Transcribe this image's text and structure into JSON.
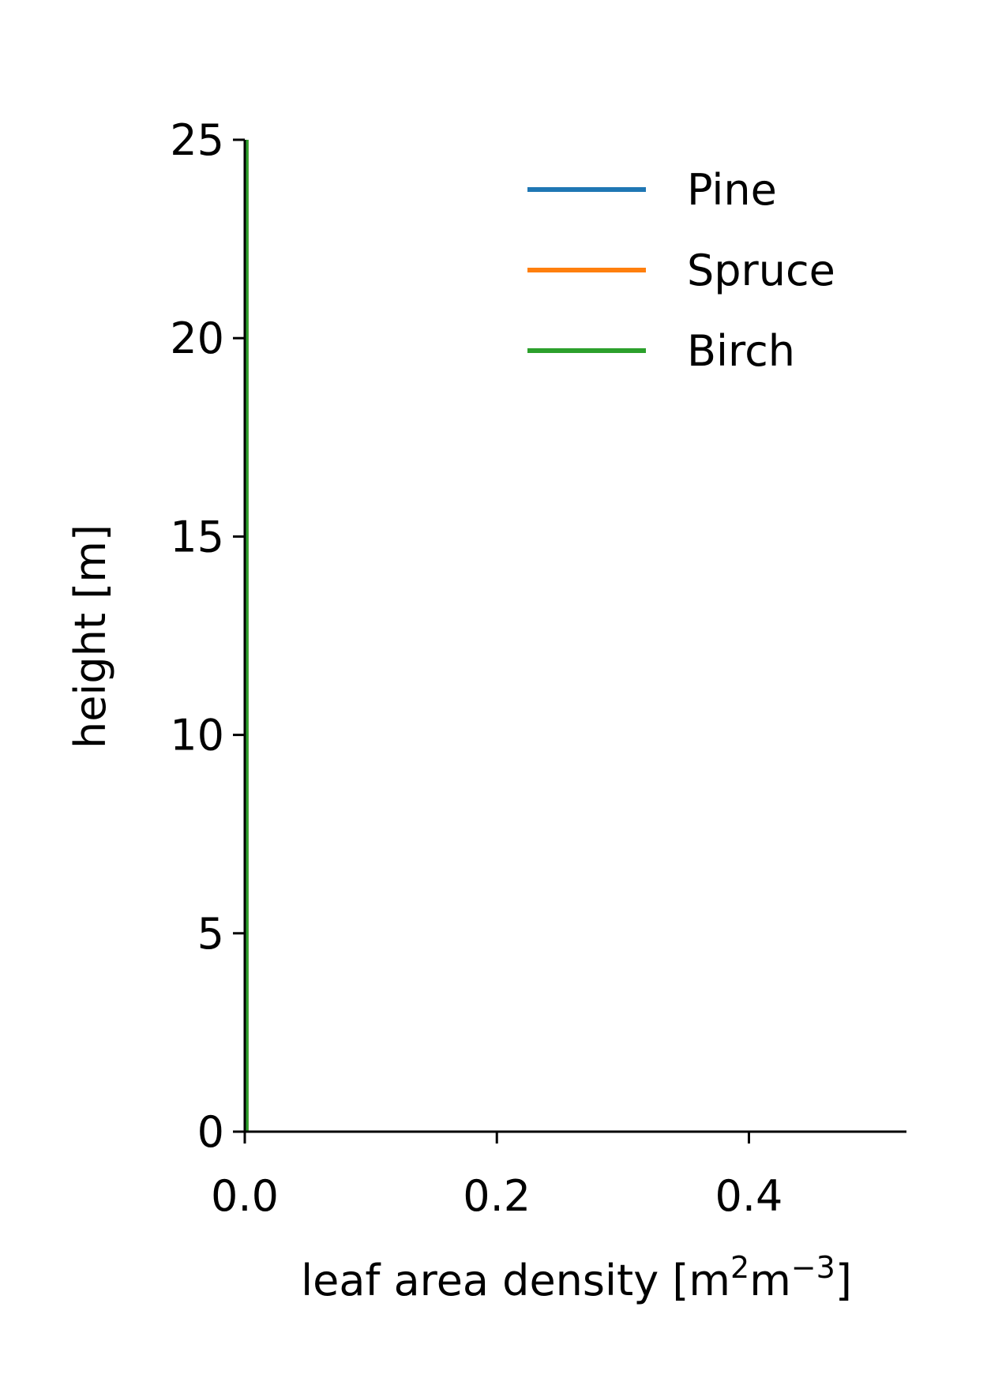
{
  "chart_data": {
    "type": "line",
    "title": "",
    "xlabel": "leaf area density [m",
    "xlabel_sup1": "2",
    "xlabel_mid": "m",
    "xlabel_sup2": "−3",
    "xlabel_end": "]",
    "ylabel": "height [m]",
    "xlim": [
      0.0,
      0.525
    ],
    "ylim": [
      0,
      25
    ],
    "xticks": [
      0.0,
      0.2,
      0.4
    ],
    "xtick_labels": [
      "0.0",
      "0.2",
      "0.4"
    ],
    "yticks": [
      0,
      5,
      10,
      15,
      20,
      25
    ],
    "ytick_labels": [
      "0",
      "5",
      "10",
      "15",
      "20",
      "25"
    ],
    "grid": false,
    "legend_position": "top-right",
    "series": [
      {
        "name": "Pine",
        "color": "#1f77b4",
        "x": [
          0,
          0
        ],
        "y": [
          0,
          25
        ]
      },
      {
        "name": "Spruce",
        "color": "#ff7f0e",
        "x": [
          0,
          0
        ],
        "y": [
          0,
          25
        ]
      },
      {
        "name": "Birch",
        "color": "#2ca02c",
        "x": [
          0,
          0
        ],
        "y": [
          0,
          25
        ]
      }
    ]
  }
}
